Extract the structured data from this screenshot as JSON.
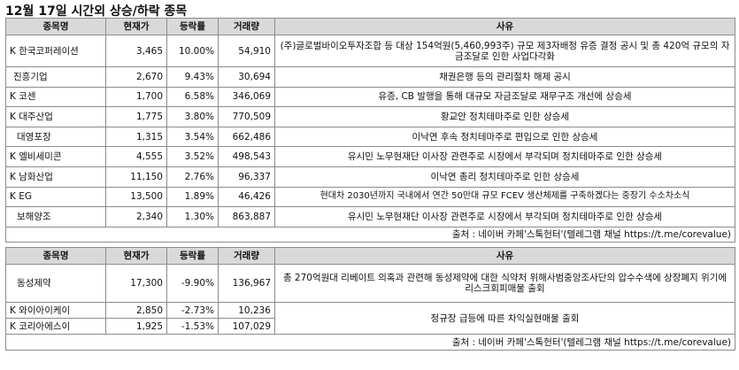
{
  "title": "12월 17일  시간외 상승/하락 종목",
  "headers": {
    "name": "종목명",
    "price": "현재가",
    "change": "등락률",
    "volume": "거래량",
    "reason": "사유"
  },
  "rising": [
    {
      "name": "K 한국코퍼레이션",
      "price": "3,465",
      "change": "10.00%",
      "volume": "54,910",
      "reason": "(주)글로벌바이오투자조합 등 대상 154억원(5,460,993주) 규모 제3자배정 유증 결정 공시 및 총 420억 규모의 자금조달로 인한 사업다각화"
    },
    {
      "name": "진흥기업",
      "price": "2,670",
      "change": "9.43%",
      "volume": "30,694",
      "reason": "채권은행 등의 관리절차 해제 공시"
    },
    {
      "name": "K 코센",
      "price": "1,700",
      "change": "6.58%",
      "volume": "346,069",
      "reason": "유증, CB 발행을 통해 대규모 자금조달로 재무구조 개선에 상승세"
    },
    {
      "name": "K 대주산업",
      "price": "1,775",
      "change": "3.80%",
      "volume": "770,509",
      "reason": "황교안 정치테마주로 인한 상승세"
    },
    {
      "name": "대영포장",
      "price": "1,315",
      "change": "3.54%",
      "volume": "662,486",
      "reason": "이낙연 후속 정치테마주로 편입으로 인한 상승세"
    },
    {
      "name": "K 엘비세미콘",
      "price": "4,555",
      "change": "3.52%",
      "volume": "498,543",
      "reason": "유시민 노무현재단 이사장 관련주로 시장에서 부각되며 정치테마주로 인한 상승세"
    },
    {
      "name": "K 남화산업",
      "price": "11,150",
      "change": "2.76%",
      "volume": "96,337",
      "reason": "이낙연 총리 정치테마주로 인한 상승세"
    },
    {
      "name": "K EG",
      "price": "13,500",
      "change": "1.89%",
      "volume": "46,426",
      "reason": "현대차 2030년까지 국내에서 연간 50만대 규모 FCEV 생산체제를 구축하겠다는 중장기 수소차소식"
    },
    {
      "name": "보해양조",
      "price": "2,340",
      "change": "1.30%",
      "volume": "863,887",
      "reason": "유시민 노무현재단 이사장 관련주로 시장에서 부각되며 정치테마주로 인한 상승세"
    }
  ],
  "falling": [
    {
      "name": "동성제약",
      "price": "17,300",
      "change": "-9.90%",
      "volume": "136,967",
      "reason": "총 270억원대 리베이트 의혹과 관련해 동성제약에 대한 식약처 위해사범중앙조사단의 압수수색에 상장폐지 위기에 리스크회피매물 출회"
    },
    {
      "name": "K 와이아이케이",
      "price": "2,850",
      "change": "-2.73%",
      "volume": "10,236"
    },
    {
      "name": "K 코리아에스이",
      "price": "1,925",
      "change": "-1.53%",
      "volume": "107,029"
    }
  ],
  "falling_shared_reason": "정규장 급등에 따른 차익실현매물 출회",
  "source": "출처 : 네이버 카페'스톡헌터'(텔레그램 채널 https://t.me/corevalue)"
}
